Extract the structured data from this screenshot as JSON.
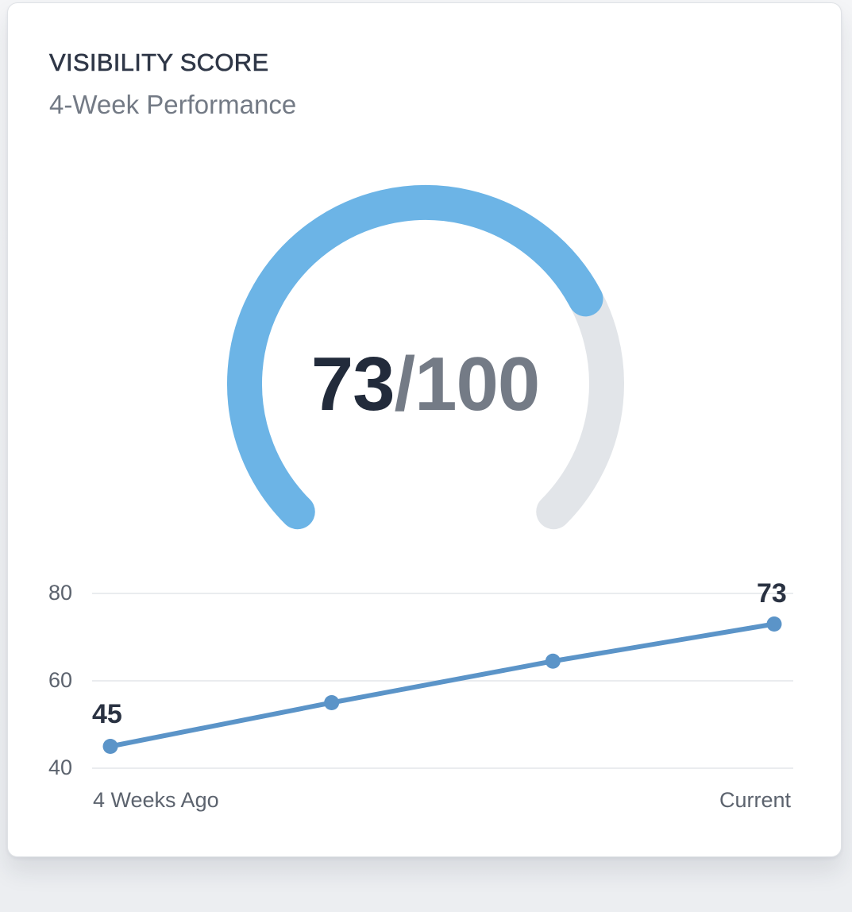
{
  "card": {
    "title": "VISIBILITY SCORE",
    "subtitle": "4-Week Performance"
  },
  "gauge": {
    "value": 73,
    "max": 100,
    "value_text": "73",
    "separator": "/",
    "max_text": "100",
    "fill_color": "#6cb4e6",
    "track_color": "#e2e5e9"
  },
  "colors": {
    "line": "#5b94c8",
    "grid": "#e3e6ea",
    "title": "#2f3747",
    "subtitle": "#737a85"
  },
  "chart_data": [
    {
      "type": "gauge",
      "title": "VISIBILITY SCORE",
      "value": 73,
      "max": 100,
      "label": "73/100"
    },
    {
      "type": "line",
      "title": "4-Week Performance",
      "x": [
        "4 Weeks Ago",
        "",
        "",
        "Current"
      ],
      "series": [
        {
          "name": "Visibility Score",
          "values": [
            45,
            55,
            64.5,
            73
          ]
        }
      ],
      "data_labels": [
        {
          "index": 0,
          "text": "45"
        },
        {
          "index": 3,
          "text": "73"
        }
      ],
      "yticks": [
        80,
        60,
        40
      ],
      "ylim": [
        40,
        80
      ],
      "grid": true,
      "xlabel": "",
      "ylabel": "",
      "x_tick_labels": {
        "first": "4 Weeks Ago",
        "last": "Current"
      },
      "legend": "none"
    }
  ]
}
